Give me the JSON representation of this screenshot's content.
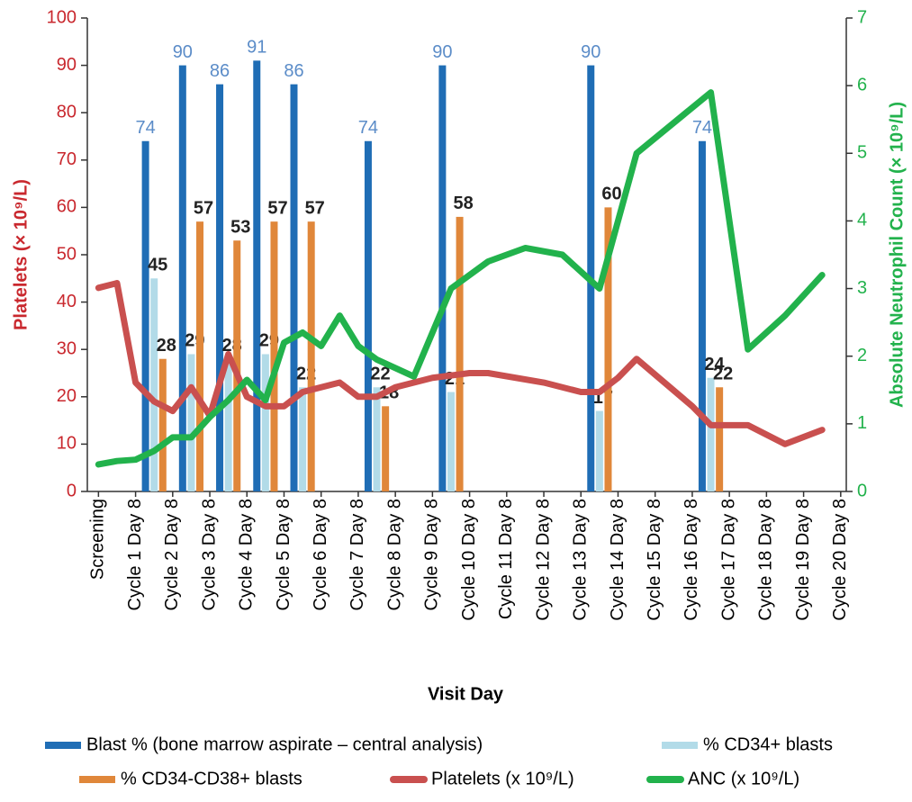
{
  "chart_data": {
    "type": "bar",
    "x_label": "Visit Day",
    "y_label": "Platelets (× 10⁹/L)",
    "y2_label": "Absolute Neutrophil Count (× 10⁹/L)",
    "xlim": [
      -0.3,
      20.15
    ],
    "xticks": [
      {
        "value": 0,
        "label": "Screening"
      },
      {
        "value": 1,
        "label": "Cycle 1 Day 8"
      },
      {
        "value": 2,
        "label": "Cycle 2 Day 8"
      },
      {
        "value": 3,
        "label": "Cycle 3 Day 8"
      },
      {
        "value": 4,
        "label": "Cycle 4 Day 8"
      },
      {
        "value": 5,
        "label": "Cycle 5 Day 8"
      },
      {
        "value": 6,
        "label": "Cycle 6 Day 8"
      },
      {
        "value": 7,
        "label": "Cycle 7 Day 8"
      },
      {
        "value": 8,
        "label": "Cycle 8 Day 8"
      },
      {
        "value": 9,
        "label": "Cycle 9 Day 8"
      },
      {
        "value": 10,
        "label": "Cycle 10 Day 8"
      },
      {
        "value": 11,
        "label": "Cycle 11 Day 8"
      },
      {
        "value": 12,
        "label": "Cycle 12 Day 8"
      },
      {
        "value": 13,
        "label": "Cycle 13 Day 8"
      },
      {
        "value": 14,
        "label": "Cycle 14 Day 8"
      },
      {
        "value": 15,
        "label": "Cycle 15 Day 8"
      },
      {
        "value": 16,
        "label": "Cycle 16 Day 8"
      },
      {
        "value": 17,
        "label": "Cycle 17 Day 8"
      },
      {
        "value": 18,
        "label": "Cycle 18 Day 8"
      },
      {
        "value": 19,
        "label": "Cycle 19 Day 8"
      },
      {
        "value": 20,
        "label": "Cycle 20 Day 8"
      }
    ],
    "ylim": [
      0,
      100
    ],
    "yticks": [
      0,
      10,
      20,
      30,
      40,
      50,
      60,
      70,
      80,
      90,
      100
    ],
    "y2lim": [
      0,
      7
    ],
    "y2ticks": [
      0,
      1,
      2,
      3,
      4,
      5,
      6,
      7
    ],
    "series": [
      {
        "name": "Blast % (bone marrow aspirate – central analysis)",
        "type": "bar",
        "color": "#1f6db5",
        "label_color": "#5b8cc8",
        "x": [
          1.5,
          2.5,
          3.5,
          4.5,
          5.5,
          7.5,
          9.5,
          13.5,
          16.5
        ],
        "values": [
          74,
          90,
          86,
          91,
          86,
          74,
          90,
          90,
          74
        ]
      },
      {
        "name": "% CD34+ blasts",
        "type": "bar",
        "color": "#b2dbe8",
        "label_color": "#222222",
        "x": [
          1.5,
          2.5,
          3.5,
          4.5,
          5.5,
          7.5,
          9.5,
          13.5,
          16.5
        ],
        "values": [
          45,
          29,
          28,
          29,
          22,
          22,
          21,
          17,
          24
        ]
      },
      {
        "name": "% CD34-CD38+ blasts",
        "type": "bar",
        "color": "#e0873a",
        "label_color": "#222222",
        "x": [
          1.5,
          2.5,
          3.5,
          4.5,
          5.5,
          7.5,
          9.5,
          13.5,
          16.5
        ],
        "values": [
          28,
          57,
          53,
          57,
          57,
          18,
          58,
          60,
          22
        ]
      },
      {
        "name": "Platelets (x 10⁹/L)",
        "type": "line",
        "color": "#c9504f",
        "x": [
          0,
          0.5,
          1,
          1.5,
          2,
          2.5,
          3,
          3.5,
          4,
          4.5,
          5,
          5.5,
          6,
          6.5,
          7,
          7.5,
          8,
          9,
          10,
          10.5,
          12,
          13,
          13.5,
          14,
          14.5,
          16,
          16.5,
          17.5,
          18.5,
          19.5
        ],
        "values": [
          43,
          44,
          23,
          19,
          17,
          22,
          16,
          29,
          20,
          18,
          18,
          21,
          22,
          23,
          20,
          20,
          22,
          24,
          25,
          25,
          23,
          21,
          21,
          24,
          28,
          18,
          14,
          14,
          10,
          13
        ]
      },
      {
        "name": "ANC (x 10⁹/L)",
        "type": "line",
        "axis": "y2",
        "color": "#22b24c",
        "x": [
          0,
          0.5,
          1,
          1.5,
          2,
          2.5,
          3,
          3.5,
          4,
          4.5,
          5,
          5.5,
          6,
          6.5,
          7,
          7.5,
          8.5,
          9.5,
          10.5,
          11.5,
          12.5,
          13.5,
          14.5,
          16.5,
          17.5,
          18.5,
          19.5
        ],
        "values": [
          0.4,
          0.45,
          0.47,
          0.6,
          0.8,
          0.8,
          1.1,
          1.35,
          1.65,
          1.35,
          2.2,
          2.35,
          2.15,
          2.6,
          2.15,
          1.95,
          1.7,
          3.0,
          3.4,
          3.6,
          3.5,
          3.0,
          5.0,
          5.9,
          2.1,
          2.6,
          3.2
        ]
      }
    ]
  }
}
